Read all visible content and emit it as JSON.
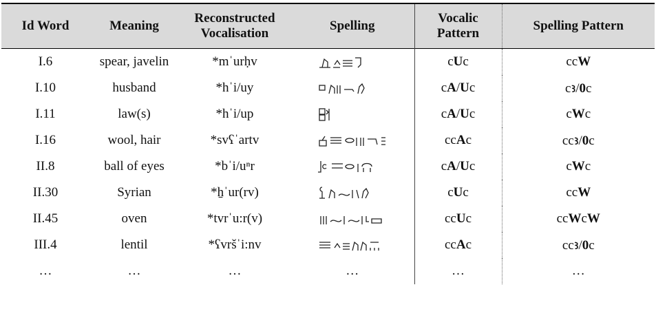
{
  "table": {
    "header": [
      "Id Word",
      "Meaning",
      "Reconstructed Vocalisation",
      "Spelling",
      "Vocalic Pattern",
      "Spelling Pattern"
    ],
    "rows": [
      {
        "id": "I.6",
        "meaning": "spear, javelin",
        "vocalisation": "*mˈurḥv",
        "vocalic": "cUc",
        "spelling_pattern": "ccW"
      },
      {
        "id": "I.10",
        "meaning": "husband",
        "vocalisation": "*hˈi/uy",
        "vocalic": "cA/Uc",
        "spelling_pattern": "cꜣ/0c"
      },
      {
        "id": "I.11",
        "meaning": "law(s)",
        "vocalisation": "*hˈi/up",
        "vocalic": "cA/Uc",
        "spelling_pattern": "cWc"
      },
      {
        "id": "I.16",
        "meaning": "wool, hair",
        "vocalisation": "*svʕˈartv",
        "vocalic": "ccAc",
        "spelling_pattern": "ccꜣ/0c"
      },
      {
        "id": "II.8",
        "meaning": "ball of eyes",
        "vocalisation": "*bˈi/uⁿr",
        "vocalic": "cA/Uc",
        "spelling_pattern": "cWc"
      },
      {
        "id": "II.30",
        "meaning": "Syrian",
        "vocalisation": "*ẖˈur(rv)",
        "vocalic": "cUc",
        "spelling_pattern": "ccW"
      },
      {
        "id": "II.45",
        "meaning": "oven",
        "vocalisation": "*tvrˈu:r(v)",
        "vocalic": "ccUc",
        "spelling_pattern": "ccWcW"
      },
      {
        "id": "III.4",
        "meaning": "lentil",
        "vocalisation": "*ʕvršˈi:nv",
        "vocalic": "ccAc",
        "spelling_pattern": "ccꜣ/0c"
      },
      {
        "id": "…",
        "meaning": "…",
        "vocalisation": "…",
        "spelling": "…",
        "vocalic": "…",
        "spelling_pattern": "…"
      }
    ]
  }
}
